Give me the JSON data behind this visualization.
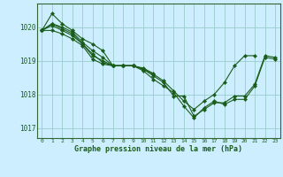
{
  "title": "Graphe pression niveau de la mer (hPa)",
  "background_color": "#cceeff",
  "grid_color": "#99cccc",
  "line_color": "#1a5c1a",
  "marker_color": "#1a5c1a",
  "xlim": [
    -0.5,
    23.5
  ],
  "ylim": [
    1016.7,
    1020.7
  ],
  "yticks": [
    1017,
    1018,
    1019,
    1020
  ],
  "xticks": [
    0,
    1,
    2,
    3,
    4,
    5,
    6,
    7,
    8,
    9,
    10,
    11,
    12,
    13,
    14,
    15,
    16,
    17,
    18,
    19,
    20,
    21,
    22,
    23
  ],
  "series": [
    {
      "x": [
        0,
        1,
        2,
        3,
        4,
        5,
        6,
        7,
        8,
        9,
        10,
        11,
        12,
        13,
        14,
        15,
        16,
        17,
        18,
        19,
        20,
        21,
        22,
        23
      ],
      "y": [
        1019.9,
        1020.4,
        1020.1,
        1019.9,
        1019.65,
        1019.5,
        1019.3,
        1018.85,
        1018.85,
        1018.85,
        1018.75,
        1018.55,
        1018.35,
        1017.95,
        1017.95,
        1017.35,
        1017.55,
        1017.75,
        1017.75,
        1017.95,
        1017.95,
        1018.3,
        1019.15,
        1019.1
      ]
    },
    {
      "x": [
        0,
        1,
        2,
        3,
        4,
        5,
        6,
        7,
        8,
        9,
        10,
        11,
        12,
        13,
        14,
        15,
        16,
        17,
        18,
        19,
        20,
        21
      ],
      "y": [
        1019.9,
        1020.1,
        1020.0,
        1019.85,
        1019.55,
        1019.3,
        1019.1,
        1018.85,
        1018.85,
        1018.85,
        1018.75,
        1018.6,
        1018.4,
        1018.1,
        1017.8,
        1017.55,
        1017.8,
        1018.0,
        1018.35,
        1018.85,
        1019.15,
        1019.15
      ]
    },
    {
      "x": [
        0,
        1,
        2,
        3,
        4,
        5,
        6,
        7,
        8,
        9,
        10,
        11
      ],
      "y": [
        1019.9,
        1020.05,
        1019.9,
        1019.75,
        1019.5,
        1019.15,
        1019.0,
        1018.85,
        1018.85,
        1018.85,
        1018.78,
        1018.62
      ]
    },
    {
      "x": [
        0,
        1,
        2,
        3,
        4,
        5,
        6,
        7,
        8,
        9
      ],
      "y": [
        1019.9,
        1019.9,
        1019.8,
        1019.65,
        1019.45,
        1019.05,
        1018.9,
        1018.85,
        1018.85,
        1018.85
      ]
    },
    {
      "x": [
        0,
        1,
        2,
        3,
        4,
        5,
        6,
        7,
        8,
        9,
        10,
        11,
        12,
        13,
        14,
        15,
        16,
        17,
        18,
        19,
        20,
        21,
        22,
        23
      ],
      "y": [
        1019.9,
        1020.1,
        1019.95,
        1019.8,
        1019.5,
        1019.2,
        1018.95,
        1018.85,
        1018.85,
        1018.85,
        1018.7,
        1018.45,
        1018.25,
        1018.05,
        1017.65,
        1017.3,
        1017.6,
        1017.8,
        1017.7,
        1017.85,
        1017.85,
        1018.25,
        1019.1,
        1019.05
      ]
    }
  ]
}
